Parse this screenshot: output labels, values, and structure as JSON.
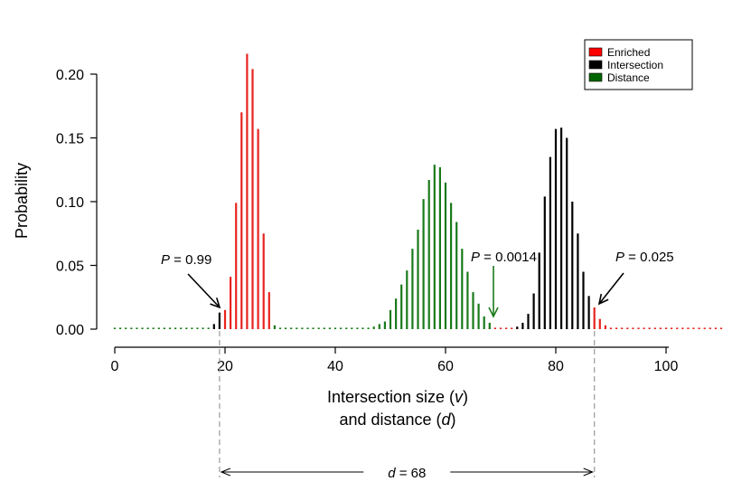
{
  "chart_data": {
    "type": "bar",
    "xlabel_line1": "Intersection size (v)",
    "xlabel_line2": "and distance (d)",
    "ylabel": "Probability",
    "xlim": [
      0,
      110
    ],
    "ylim": [
      0,
      0.22
    ],
    "x_ticks": [
      "0",
      "20",
      "40",
      "60",
      "80",
      "100"
    ],
    "y_ticks": [
      "0.00",
      "0.05",
      "0.10",
      "0.15",
      "0.20"
    ],
    "grid": false,
    "legend_position": "top-right",
    "legend": [
      {
        "name": "Enriched",
        "color": "#ff0000"
      },
      {
        "name": "Intersection",
        "color": "#000000"
      },
      {
        "name": "Distance",
        "color": "#006400"
      }
    ],
    "series": [
      {
        "name": "Enriched",
        "color": "#e8231e",
        "x": [
          20,
          21,
          22,
          23,
          24,
          25,
          26,
          27,
          28,
          68,
          69,
          70,
          71,
          72,
          73,
          74,
          75,
          76,
          77,
          78,
          79,
          80,
          81,
          82,
          83,
          84,
          85,
          86,
          87,
          88,
          89,
          90,
          91,
          92,
          93,
          94,
          95,
          96,
          97,
          98,
          99,
          100,
          101,
          102,
          103,
          104,
          105,
          106,
          107,
          108,
          109,
          110
        ],
        "values": [
          0.015,
          0.041,
          0.099,
          0.17,
          0.216,
          0.204,
          0.157,
          0.075,
          0.029,
          0.001,
          0.001,
          0.001,
          0.001,
          0.001,
          0.001,
          0.001,
          0.001,
          0.001,
          0.001,
          0.001,
          0.001,
          0.001,
          0.001,
          0.001,
          0.001,
          0.001,
          0.001,
          0.001,
          0.017,
          0.008,
          0.003,
          0.001,
          0.001,
          0.001,
          0.001,
          0.001,
          0.001,
          0.001,
          0.001,
          0.001,
          0.001,
          0.001,
          0.001,
          0.001,
          0.001,
          0.001,
          0.001,
          0.001,
          0.001,
          0.001,
          0.001,
          0.001
        ]
      },
      {
        "name": "Intersection",
        "color": "#000000",
        "x": [
          18,
          19,
          73,
          74,
          75,
          76,
          77,
          78,
          79,
          80,
          81,
          82,
          83,
          84,
          85,
          86
        ],
        "values": [
          0.004,
          0.013,
          0.002,
          0.005,
          0.012,
          0.028,
          0.06,
          0.104,
          0.135,
          0.157,
          0.158,
          0.15,
          0.1,
          0.075,
          0.045,
          0.026
        ]
      },
      {
        "name": "Distance",
        "color": "#1a7a1a",
        "x": [
          0,
          1,
          2,
          3,
          4,
          5,
          6,
          7,
          8,
          9,
          10,
          11,
          12,
          13,
          14,
          15,
          16,
          17,
          29,
          30,
          31,
          32,
          33,
          34,
          35,
          36,
          37,
          38,
          39,
          40,
          41,
          42,
          43,
          44,
          45,
          46,
          47,
          48,
          49,
          50,
          51,
          52,
          53,
          54,
          55,
          56,
          57,
          58,
          59,
          60,
          61,
          62,
          63,
          64,
          65,
          66,
          67,
          68
        ],
        "values": [
          0.001,
          0.001,
          0.001,
          0.001,
          0.001,
          0.001,
          0.001,
          0.001,
          0.001,
          0.001,
          0.001,
          0.001,
          0.001,
          0.001,
          0.001,
          0.001,
          0.001,
          0.001,
          0.003,
          0.001,
          0.001,
          0.001,
          0.001,
          0.001,
          0.001,
          0.001,
          0.001,
          0.001,
          0.001,
          0.001,
          0.001,
          0.001,
          0.001,
          0.001,
          0.001,
          0.001,
          0.002,
          0.004,
          0.006,
          0.015,
          0.024,
          0.035,
          0.046,
          0.063,
          0.078,
          0.102,
          0.117,
          0.129,
          0.127,
          0.115,
          0.099,
          0.084,
          0.063,
          0.045,
          0.029,
          0.02,
          0.01,
          0.005
        ]
      }
    ],
    "annotations": [
      {
        "id": "p1",
        "p": "P",
        "text": " = 0.99",
        "x": 19,
        "y": 0.017,
        "color": "#000000"
      },
      {
        "id": "p2",
        "p": "P",
        "text": " = 0.0014",
        "x": 68,
        "y": 0.008,
        "color": "#1a7a1a"
      },
      {
        "id": "p3",
        "p": "P",
        "text": " = 0.025",
        "x": 87,
        "y": 0.018,
        "color": "#000000"
      }
    ],
    "distance": {
      "d": "d",
      "text": " = 68",
      "from": 19,
      "to": 87
    }
  }
}
